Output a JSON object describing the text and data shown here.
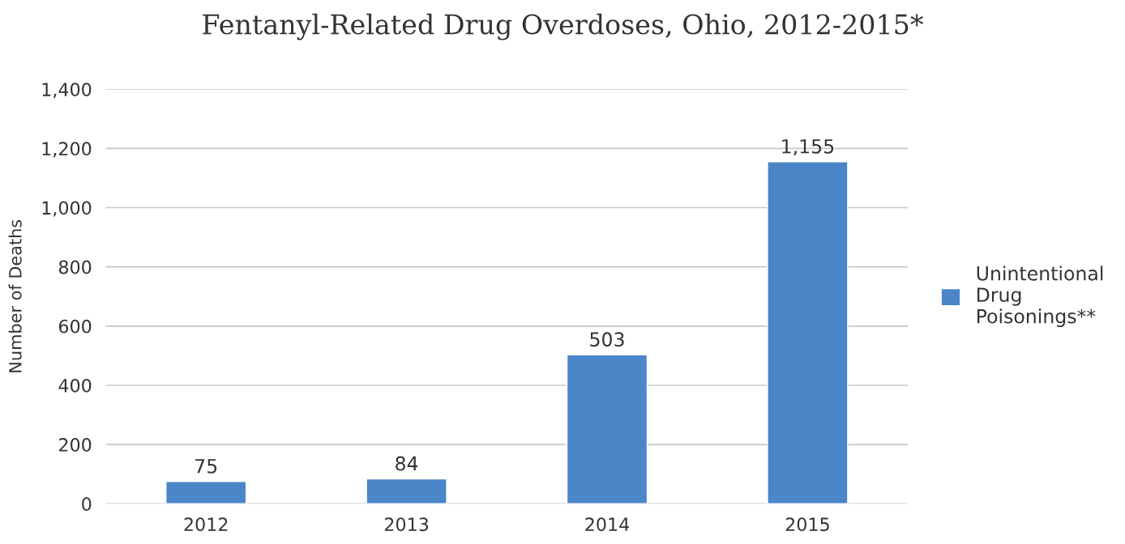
{
  "chart_data": {
    "type": "bar",
    "title": "Fentanyl-Related Drug Overdoses, Ohio, 2012-2015*",
    "ylabel": "Number of Deaths",
    "categories": [
      "2012",
      "2013",
      "2014",
      "2015"
    ],
    "series": [
      {
        "name": "Unintentional\nDrug\nPoisonings**",
        "color": "#4a86c8",
        "values": [
          75,
          84,
          503,
          1155
        ],
        "value_labels": [
          "75",
          "84",
          "503",
          "1,155"
        ]
      }
    ],
    "ylim": [
      0,
      1400
    ],
    "yticks": [
      0,
      200,
      400,
      600,
      800,
      {
        "value": 1000,
        "label": "1,000"
      },
      {
        "value": 1200,
        "label": "1,200"
      },
      {
        "value": 1400,
        "label": "1,400"
      }
    ],
    "grid": "y",
    "legend": "right"
  }
}
